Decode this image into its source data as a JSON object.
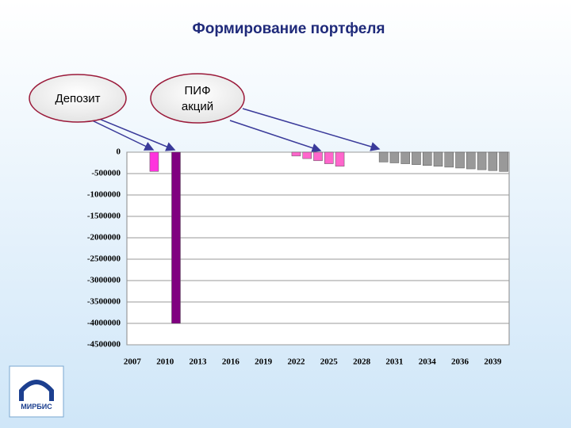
{
  "slide": {
    "title": "Формирование портфеля",
    "callouts": [
      "Депозит",
      "ПИФ",
      "акций"
    ],
    "logo": "МИРБИС"
  },
  "chart_data": {
    "type": "bar",
    "categories": [
      "2007",
      null,
      null,
      "2010",
      null,
      null,
      "2013",
      null,
      null,
      "2016",
      null,
      null,
      "2019",
      null,
      null,
      "2022",
      null,
      null,
      "2025",
      null,
      null,
      "2028",
      null,
      null,
      "2031",
      null,
      null,
      "2034",
      null,
      null,
      "2036",
      null,
      null,
      "2039",
      null
    ],
    "values": [
      null,
      null,
      -450000,
      null,
      -4000000,
      null,
      null,
      null,
      null,
      null,
      null,
      null,
      null,
      null,
      null,
      -90000,
      -150000,
      -200000,
      -270000,
      -330000,
      null,
      null,
      null,
      -230000,
      -250000,
      -270000,
      -290000,
      -310000,
      -330000,
      -350000,
      -370000,
      -390000,
      -410000,
      -430000,
      -450000
    ],
    "colors": [
      null,
      null,
      "#ff33dd",
      null,
      "#800080",
      null,
      null,
      null,
      null,
      null,
      null,
      null,
      null,
      null,
      null,
      "#ff66cc",
      "#ff66cc",
      "#ff66cc",
      "#ff66cc",
      "#ff66cc",
      null,
      null,
      null,
      "#999999",
      "#999999",
      "#999999",
      "#999999",
      "#999999",
      "#999999",
      "#999999",
      "#999999",
      "#999999",
      "#999999",
      "#999999",
      "#999999"
    ],
    "ylim": [
      -4500000,
      0
    ],
    "yticks": [
      0,
      -500000,
      -1000000,
      -1500000,
      -2000000,
      -2500000,
      -3000000,
      -3500000,
      -4000000,
      -4500000
    ],
    "grid": true
  }
}
